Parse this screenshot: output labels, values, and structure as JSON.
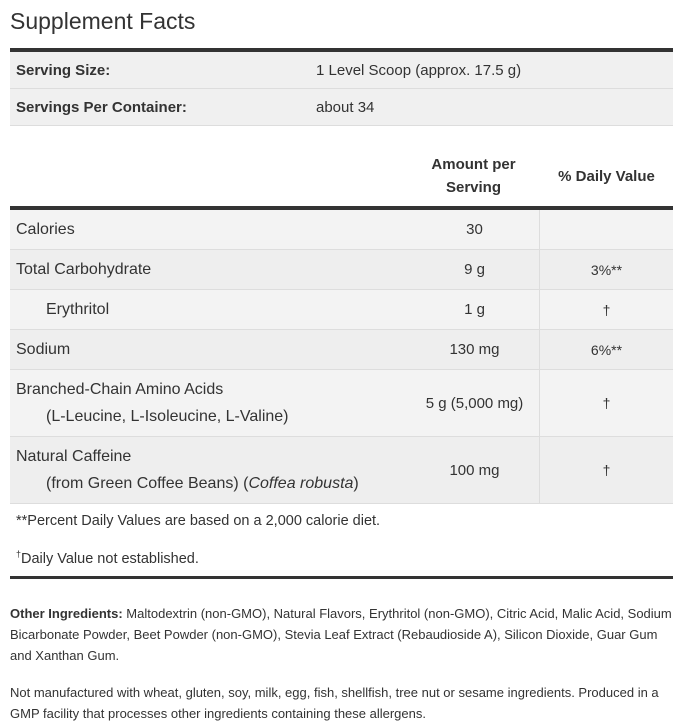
{
  "title": "Supplement Facts",
  "serving": [
    {
      "label": "Serving Size:",
      "value": "1 Level Scoop (approx. 17.5 g)"
    },
    {
      "label": "Servings Per Container:",
      "value": "about 34"
    }
  ],
  "columns": {
    "amount_line1": "Amount per",
    "amount_line2": "Serving",
    "dv": "% Daily Value"
  },
  "nutrients": [
    {
      "name": "Calories",
      "amount": "30",
      "dv": ""
    },
    {
      "name": "Total Carbohydrate",
      "amount": "9 g",
      "dv": "3%**"
    },
    {
      "name": "Erythritol",
      "amount": "1 g",
      "dv": "†"
    },
    {
      "name": "Sodium",
      "amount": "130 mg",
      "dv": "6%**"
    },
    {
      "name": "Branched-Chain Amino Acids",
      "sub": "(L-Leucine, L-Isoleucine, L-Valine)",
      "amount": "5 g (5,000 mg)",
      "dv": "†"
    },
    {
      "name": "Natural Caffeine",
      "sub_pre": "(from Green Coffee Beans) (",
      "sub_italic": "Coffea robusta",
      "sub_post": ")",
      "amount": "100 mg",
      "dv": "†"
    }
  ],
  "footnotes": {
    "percent": "**Percent Daily Values are based on a 2,000 calorie diet.",
    "dagger_mark": "†",
    "dagger": "Daily Value not established."
  },
  "other_ingredients": {
    "label": "Other Ingredients:",
    "text": " Maltodextrin (non-GMO), Natural Flavors, Erythritol (non-GMO), Citric Acid, Malic Acid, Sodium Bicarbonate Powder, Beet Powder (non-GMO), Stevia Leaf Extract (Rebaudioside A), Silicon Dioxide, Guar Gum and Xanthan Gum."
  },
  "allergen": "Not manufactured with wheat, gluten, soy, milk, egg, fish, shellfish, tree nut or sesame ingredients. Produced in a GMP facility that processes other ingredients containing these allergens."
}
